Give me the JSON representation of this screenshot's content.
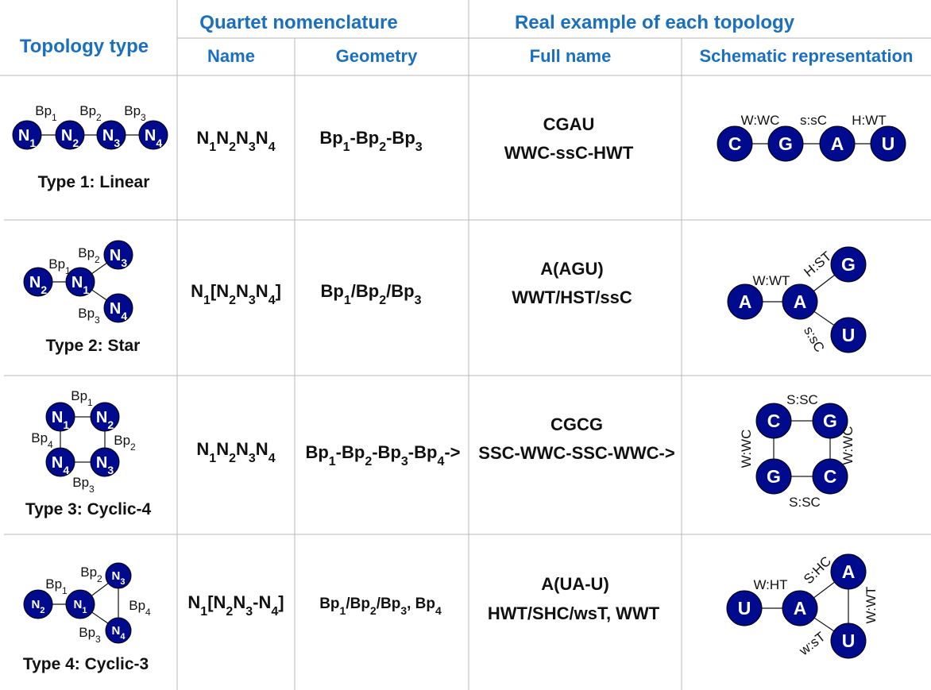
{
  "colors": {
    "header": "#1a6fc0",
    "node_fill": "#000a8c",
    "node_stroke": "#000000",
    "node_text": "#ffffff",
    "text": "#111111",
    "grid": "#b8b8b8"
  },
  "header": {
    "topology_type": "Topology type",
    "quartet_nomenclature": "Quartet nomenclature",
    "real_example": "Real example of each topology",
    "name": "Name",
    "geometry": "Geometry",
    "full_name": "Full name",
    "schematic": "Schematic representation"
  },
  "rows": [
    {
      "type_label": "Type 1: Linear",
      "name": [
        "N",
        "1",
        "N",
        "2",
        "N",
        "3",
        "N",
        "4"
      ],
      "geometry": [
        "Bp",
        "1",
        "-Bp",
        "2",
        "-Bp",
        "3"
      ],
      "example_seq": "CGAU",
      "example_pairs": "WWC-ssC-HWT",
      "topo_nodes": [
        "N1",
        "N2",
        "N3",
        "N4"
      ],
      "topo_labels": [
        "Bp1",
        "Bp2",
        "Bp3"
      ],
      "schema_nodes": [
        "C",
        "G",
        "A",
        "U"
      ],
      "schema_labels": [
        "W:WC",
        "s:sC",
        "H:WT"
      ]
    },
    {
      "type_label": "Type 2: Star",
      "name": [
        "N",
        "1",
        "[N",
        "2",
        "N",
        "3",
        "N",
        "4",
        "]"
      ],
      "geometry": [
        "Bp",
        "1",
        "/Bp",
        "2",
        "/Bp",
        "3"
      ],
      "example_seq": "A(AGU)",
      "example_pairs": "WWT/HST/ssC",
      "topo_nodes": [
        "N2",
        "N1",
        "N3",
        "N4"
      ],
      "topo_labels": [
        "Bp1",
        "Bp2",
        "Bp3"
      ],
      "schema_nodes": [
        "A",
        "A",
        "G",
        "U"
      ],
      "schema_labels": [
        "W:WT",
        "H:ST",
        "s:sC"
      ]
    },
    {
      "type_label": "Type 3: Cyclic-4",
      "name": [
        "N",
        "1",
        "N",
        "2",
        "N",
        "3",
        "N",
        "4"
      ],
      "geometry": [
        "Bp",
        "1",
        "-Bp",
        "2",
        "-Bp",
        "3",
        "-Bp",
        "4",
        "->"
      ],
      "example_seq": "CGCG",
      "example_pairs": "SSC-WWC-SSC-WWC->",
      "topo_nodes": [
        "N1",
        "N2",
        "N4",
        "N3"
      ],
      "topo_labels": [
        "Bp1",
        "Bp2",
        "Bp3",
        "Bp4"
      ],
      "schema_nodes": [
        "C",
        "G",
        "G",
        "C"
      ],
      "schema_labels": [
        "S:SC",
        "W:WC",
        "S:SC",
        "W:WC"
      ]
    },
    {
      "type_label": "Type 4: Cyclic-3",
      "name": [
        "N",
        "1",
        "[N",
        "2",
        "N",
        "3",
        "-N",
        "4",
        "]"
      ],
      "geometry": [
        "Bp",
        "1",
        "/Bp",
        "2",
        "/Bp",
        "3",
        ", Bp",
        "4",
        ""
      ],
      "example_seq": "A(UA-U)",
      "example_pairs": "HWT/SHC/wsT, WWT",
      "topo_nodes": [
        "N2",
        "N1",
        "N3",
        "N4"
      ],
      "topo_labels": [
        "Bp1",
        "Bp2",
        "Bp4",
        "Bp3"
      ],
      "schema_nodes": [
        "U",
        "A",
        "A",
        "U"
      ],
      "schema_labels": [
        "W:HT",
        "S:HC",
        "W:WT",
        "w:sT"
      ]
    }
  ]
}
